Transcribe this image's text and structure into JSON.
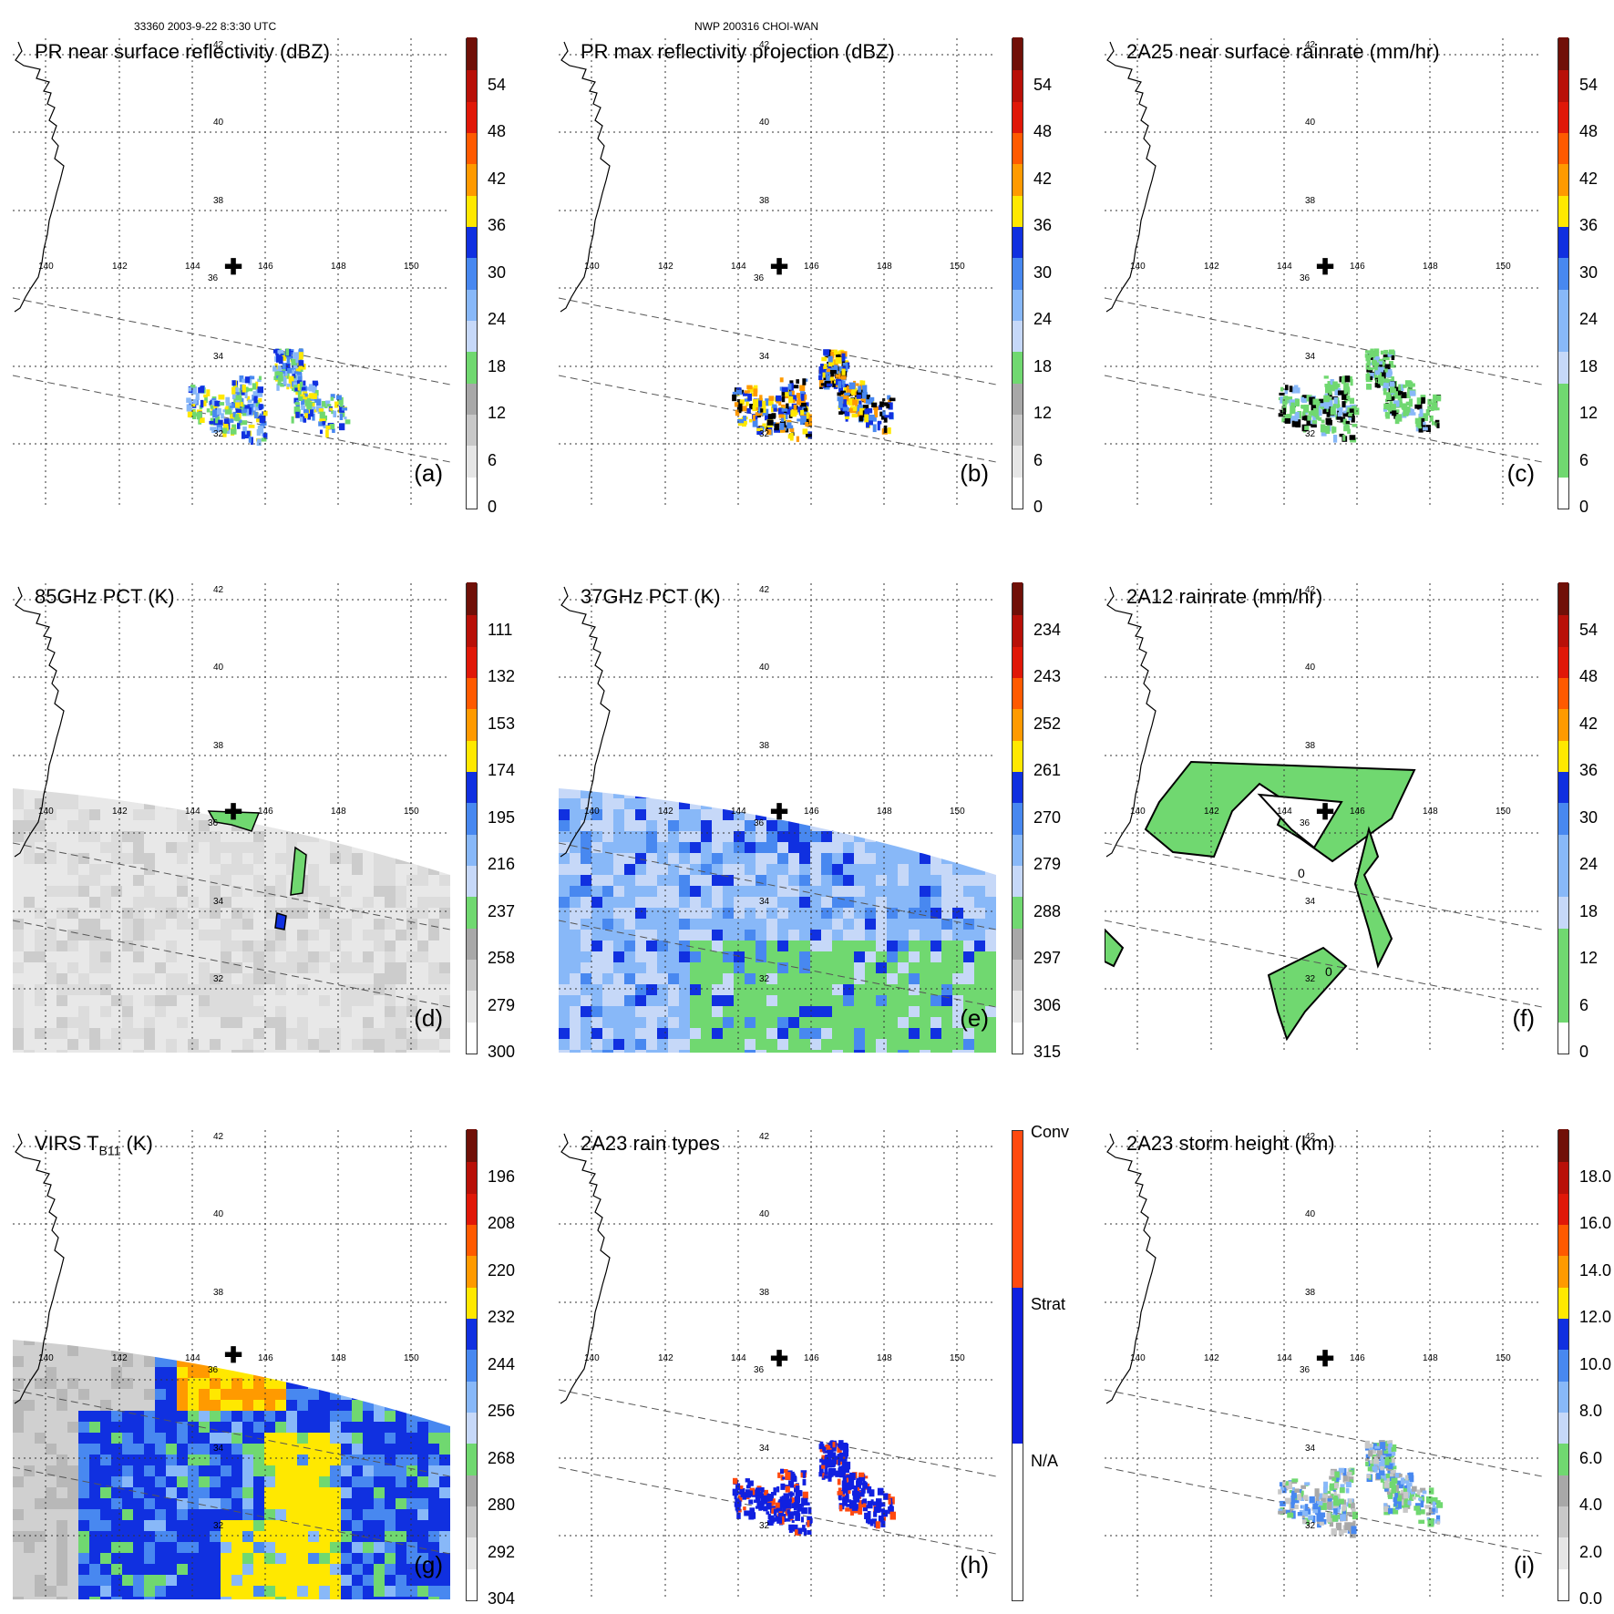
{
  "header": {
    "left": "33360 2003-9-22 8:3:30 UTC",
    "center": "NWP 200316 CHOI-WAN"
  },
  "lon_labels": [
    "140",
    "142",
    "144",
    "146",
    "148",
    "150"
  ],
  "lat_labels": [
    "42",
    "40",
    "38",
    "36",
    "34",
    "32"
  ],
  "colors": {
    "scale": [
      "#ffffff",
      "#e6e6e6",
      "#c8c8c8",
      "#a8a8a8",
      "#70d870",
      "#c6d8f8",
      "#88b8f8",
      "#4888f0",
      "#1030e0",
      "#ffe800",
      "#ff9a00",
      "#ff5a00",
      "#e01808",
      "#b81008",
      "#701008"
    ],
    "types": [
      "#ffffff",
      "#1020e0",
      "#ff4a10"
    ],
    "land": "#000000"
  },
  "panels": [
    {
      "id": "a",
      "title": "PR near surface reflectivity (dBZ)",
      "label": "(a)",
      "ticks": [
        "0",
        "6",
        "12",
        "18",
        "24",
        "30",
        "36",
        "42",
        "48",
        "54"
      ]
    },
    {
      "id": "b",
      "title": "PR max reflectivity projection (dBZ)",
      "label": "(b)",
      "ticks": [
        "0",
        "6",
        "12",
        "18",
        "24",
        "30",
        "36",
        "42",
        "48",
        "54"
      ]
    },
    {
      "id": "c",
      "title": "2A25 near surface rainrate (mm/hr)",
      "label": "(c)",
      "ticks": [
        "0",
        "6",
        "12",
        "18",
        "24",
        "30",
        "36",
        "42",
        "48",
        "54"
      ]
    },
    {
      "id": "d",
      "title": "85GHz PCT (K)",
      "label": "(d)",
      "ticks": [
        "300",
        "279",
        "258",
        "237",
        "216",
        "195",
        "174",
        "153",
        "132",
        "111"
      ]
    },
    {
      "id": "e",
      "title": "37GHz PCT (K)",
      "label": "(e)",
      "ticks": [
        "315",
        "306",
        "297",
        "288",
        "279",
        "270",
        "261",
        "252",
        "243",
        "234"
      ]
    },
    {
      "id": "f",
      "title": "2A12 rainrate (mm/hr)",
      "label": "(f)",
      "ticks": [
        "0",
        "6",
        "12",
        "18",
        "24",
        "30",
        "36",
        "42",
        "48",
        "54"
      ]
    },
    {
      "id": "g",
      "title_main": "VIRS T",
      "title_sub": "B11",
      "title_unit": " (K)",
      "label": "(g)",
      "ticks": [
        "304",
        "292",
        "280",
        "268",
        "256",
        "244",
        "232",
        "220",
        "208",
        "196"
      ]
    },
    {
      "id": "h",
      "title": "2A23 rain types",
      "label": "(h)",
      "categories": [
        "N/A",
        "Strat",
        "Conv"
      ]
    },
    {
      "id": "i",
      "title": "2A23 storm height (km)",
      "label": "(i)",
      "ticks": [
        "0.0",
        "2.0",
        "4.0",
        "6.0",
        "8.0",
        "10.0",
        "12.0",
        "14.0",
        "16.0",
        "18.0"
      ]
    }
  ],
  "contour_labels": [
    "0",
    "0"
  ]
}
